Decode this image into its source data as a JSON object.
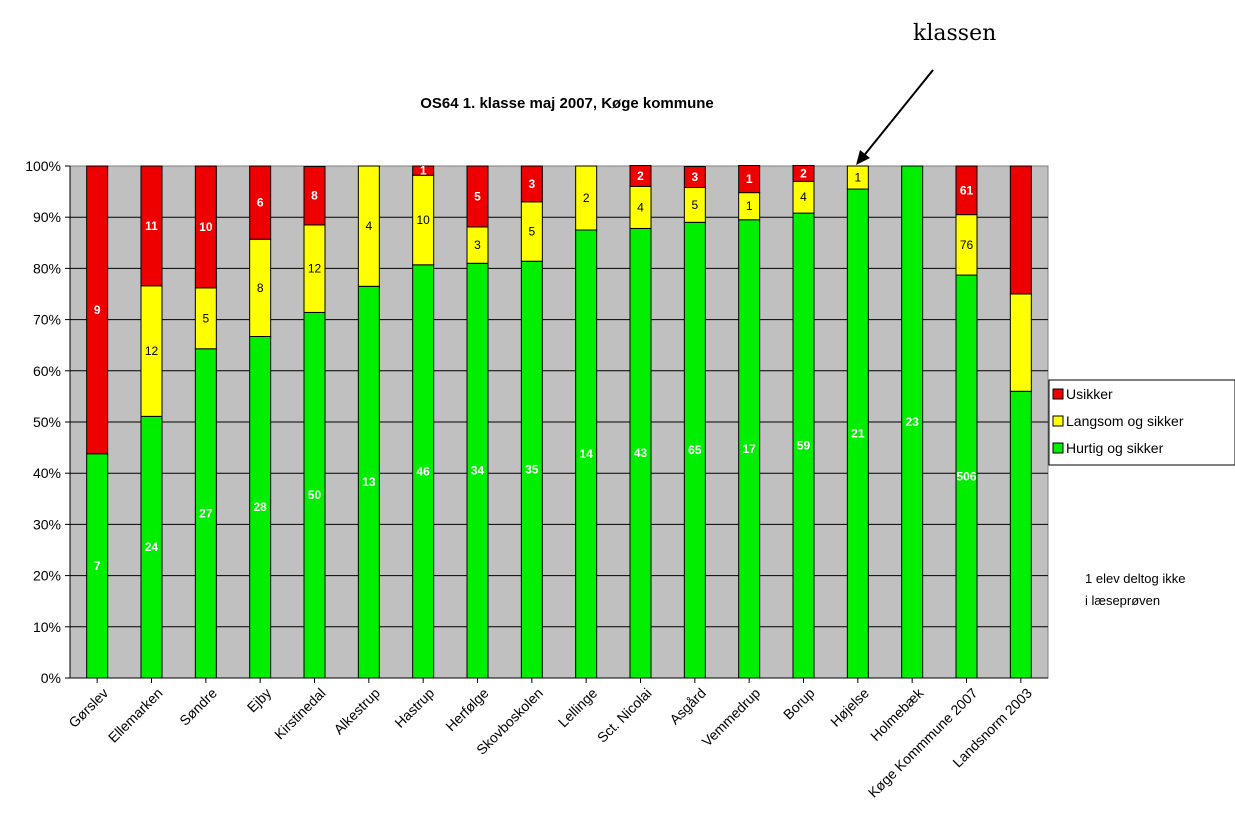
{
  "chart_data": {
    "type": "bar",
    "stacked": true,
    "percent": true,
    "title": "OS64 1. klasse maj 2007, Køge kommune",
    "xlabel": "",
    "ylabel": "",
    "ylim": [
      0,
      100
    ],
    "y_ticks": [
      "0%",
      "10%",
      "20%",
      "30%",
      "40%",
      "50%",
      "60%",
      "70%",
      "80%",
      "90%",
      "100%"
    ],
    "grid": true,
    "legend_position": "right",
    "categories": [
      "Gørslev",
      "Ellemarken",
      "Søndre",
      "Ejby",
      "Kirstinedal",
      "Alkestrup",
      "Hastrup",
      "Herfølge",
      "Skovboskolen",
      "Lellinge",
      "Sct. Nicolai",
      "Asgård",
      "Vemmedrup",
      "Borup",
      "Højelse",
      "Holmebæk",
      "Køge Kommmune 2007",
      "Landsnorm 2003"
    ],
    "series": [
      {
        "name": "Hurtig og sikker",
        "color": "#00ee00",
        "percent": [
          43.8,
          51.1,
          64.3,
          66.7,
          71.4,
          76.5,
          80.7,
          81.0,
          81.4,
          87.5,
          87.8,
          89.0,
          89.5,
          90.8,
          95.5,
          100,
          78.7,
          56
        ],
        "labels": [
          "7",
          "24",
          "27",
          "28",
          "50",
          "13",
          "46",
          "34",
          "35",
          "14",
          "43",
          "65",
          "17",
          "59",
          "21",
          "23",
          "506",
          ""
        ]
      },
      {
        "name": "Langsom og sikker",
        "color": "#ffff00",
        "percent": [
          0,
          25.5,
          11.9,
          19.0,
          17.1,
          23.5,
          17.5,
          7.1,
          11.6,
          12.5,
          8.2,
          6.8,
          5.3,
          6.2,
          4.5,
          0,
          11.8,
          19
        ],
        "labels": [
          "",
          "12",
          "5",
          "8",
          "12",
          "4",
          "10",
          "3",
          "5",
          "2",
          "4",
          "5",
          "1",
          "4",
          "1",
          "",
          "76",
          ""
        ]
      },
      {
        "name": "Usikker",
        "color": "#ee0000",
        "percent": [
          56.2,
          23.4,
          23.8,
          14.3,
          11.4,
          0,
          1.8,
          11.9,
          7.0,
          0,
          4.1,
          4.1,
          5.3,
          3.1,
          0,
          0,
          9.5,
          25
        ],
        "labels": [
          "9",
          "11",
          "10",
          "6",
          "8",
          "",
          "1",
          "5",
          "3",
          "",
          "2",
          "3",
          "1",
          "2",
          "",
          "",
          "61",
          ""
        ]
      }
    ],
    "legend": [
      "Usikker",
      "Langsom og sikker",
      "Hurtig og sikker"
    ],
    "annotations": {
      "arrow_label": "klassen",
      "arrow_target": "Højelse",
      "note_line1": "1 elev deltog ikke",
      "note_line2": "i læseprøven"
    },
    "colors": {
      "plot_background": "#c0c0c0",
      "gridline": "#000000"
    }
  }
}
